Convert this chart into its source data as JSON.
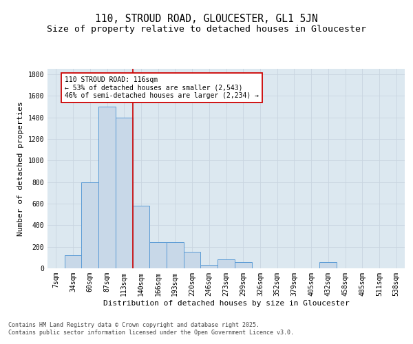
{
  "title_line1": "110, STROUD ROAD, GLOUCESTER, GL1 5JN",
  "title_line2": "Size of property relative to detached houses in Gloucester",
  "xlabel": "Distribution of detached houses by size in Gloucester",
  "ylabel": "Number of detached properties",
  "categories": [
    "7sqm",
    "34sqm",
    "60sqm",
    "87sqm",
    "113sqm",
    "140sqm",
    "166sqm",
    "193sqm",
    "220sqm",
    "246sqm",
    "273sqm",
    "299sqm",
    "326sqm",
    "352sqm",
    "379sqm",
    "405sqm",
    "432sqm",
    "458sqm",
    "485sqm",
    "511sqm",
    "538sqm"
  ],
  "values": [
    0,
    120,
    800,
    1500,
    1400,
    580,
    240,
    240,
    150,
    30,
    80,
    60,
    0,
    0,
    0,
    0,
    60,
    0,
    0,
    0,
    0
  ],
  "bar_color": "#c8d8e8",
  "bar_edge_color": "#5b9bd5",
  "grid_color": "#c8d4e0",
  "background_color": "#dce8f0",
  "vline_x": 4.5,
  "vline_color": "#cc0000",
  "annotation_text": "110 STROUD ROAD: 116sqm\n← 53% of detached houses are smaller (2,543)\n46% of semi-detached houses are larger (2,234) →",
  "annotation_box_color": "#ffffff",
  "annotation_box_edge": "#cc0000",
  "ylim": [
    0,
    1850
  ],
  "yticks": [
    0,
    200,
    400,
    600,
    800,
    1000,
    1200,
    1400,
    1600,
    1800
  ],
  "footnote": "Contains HM Land Registry data © Crown copyright and database right 2025.\nContains public sector information licensed under the Open Government Licence v3.0.",
  "title_fontsize": 10.5,
  "subtitle_fontsize": 9.5,
  "axis_label_fontsize": 8,
  "tick_fontsize": 7,
  "annotation_fontsize": 7,
  "footnote_fontsize": 6
}
